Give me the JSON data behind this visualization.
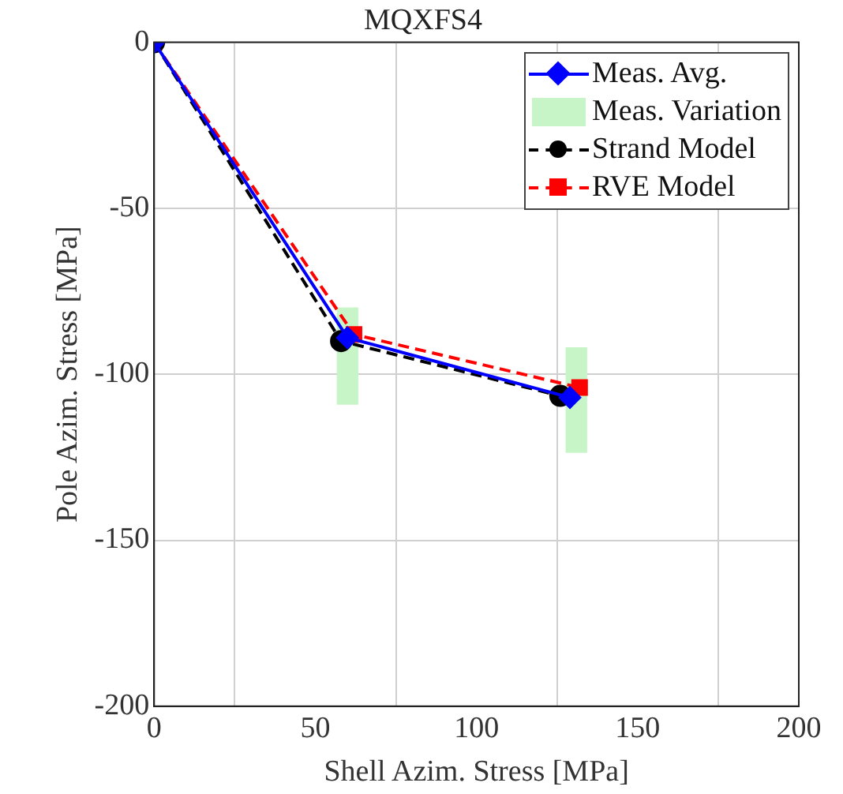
{
  "chart_data": {
    "type": "line",
    "title": "MQXFS4",
    "xlabel": "Shell Azim. Stress [MPa]",
    "ylabel": "Pole Azim. Stress [MPa]",
    "xlim": [
      0,
      200
    ],
    "xticks": [
      0,
      50,
      100,
      150,
      200
    ],
    "ylim": [
      -200,
      0
    ],
    "yticks": [
      0,
      -50,
      -100,
      -150,
      -200
    ],
    "grid": true,
    "legend": "top right",
    "series": [
      {
        "name": "Meas. Avg.",
        "color": "#0000ff",
        "marker": "diamond",
        "line_style": "solid",
        "x": [
          0,
          60,
          129
        ],
        "values": [
          0,
          -89,
          -107
        ]
      },
      {
        "name": "Meas. Variation",
        "type": "bar",
        "color": "#c8f5c8",
        "x": [
          60,
          131
        ],
        "base": [
          -80,
          -92
        ],
        "values": [
          -29,
          -31.5
        ]
      },
      {
        "name": "Strand Model",
        "color": "#000000",
        "marker": "circle",
        "line_style": "dashed",
        "x": [
          0,
          58,
          126
        ],
        "values": [
          0,
          -90,
          -106.5
        ]
      },
      {
        "name": "RVE Model",
        "color": "#ff0000",
        "marker": "square",
        "line_style": "dashed",
        "x": [
          0,
          62,
          132
        ],
        "values": [
          0,
          -88,
          -104
        ]
      }
    ]
  }
}
